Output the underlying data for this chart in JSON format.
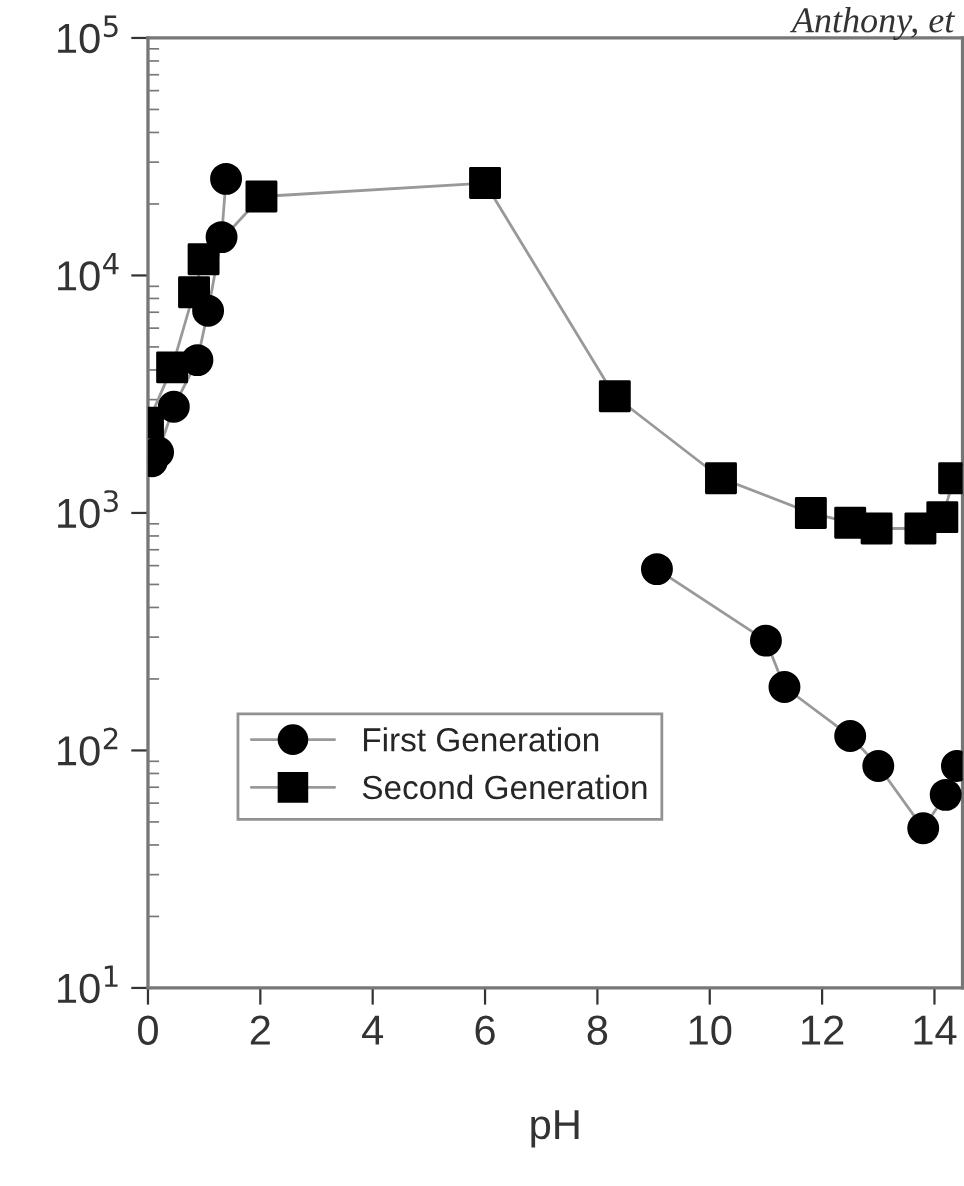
{
  "chart_data": {
    "type": "line",
    "xlabel": "pH",
    "annotations": [
      "Anthony, et"
    ],
    "log": "y",
    "xlim": [
      0,
      14.5
    ],
    "xticks": [
      0,
      2,
      4,
      6,
      8,
      10,
      12,
      14
    ],
    "ylim": [
      10,
      100000
    ],
    "yticks": [
      {
        "value": 10,
        "label": "10$^{1}$"
      },
      {
        "value": 100,
        "label": "10$^{2}$"
      },
      {
        "value": 1000,
        "label": "10$^{3}$"
      },
      {
        "value": 10000,
        "label": "10$^{4}$"
      },
      {
        "value": 100000,
        "label": "10$^{5}$"
      }
    ],
    "grid": false,
    "legend": "bottom left",
    "line_style": "solid",
    "series": [
      {
        "name": "First Generation",
        "color": "#000000",
        "marker": "circle",
        "x": [
          0.07,
          0.18,
          0.46,
          0.88,
          1.07,
          1.31,
          1.39,
          5,
          9.06,
          11.0,
          11.33,
          12.5,
          13.0,
          13.8,
          14.2,
          14.4
        ],
        "values": [
          1650,
          1800,
          2800,
          4400,
          7100,
          14500,
          25500,
          null,
          580,
          290,
          185,
          115,
          86,
          47,
          65,
          86
        ]
      },
      {
        "name": "Second Generation",
        "color": "#000000",
        "marker": "square",
        "x": [
          0,
          0.43,
          0.82,
          0.99,
          2.02,
          6.0,
          8.31,
          10.2,
          11.8,
          12.5,
          12.97,
          13.75,
          14.14,
          14.35
        ],
        "values": [
          2400,
          4100,
          8500,
          11700,
          21500,
          24500,
          3100,
          1400,
          1000,
          910,
          860,
          860,
          960,
          1400
        ]
      }
    ]
  }
}
